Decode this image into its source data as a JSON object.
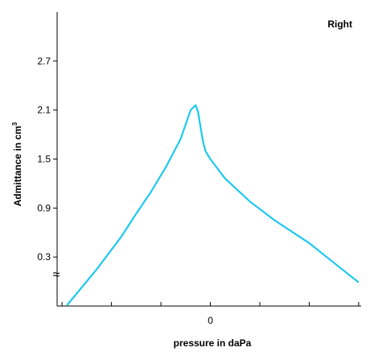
{
  "chart_data": {
    "type": "line",
    "panel_label": "Right",
    "xlabel": "pressure in daPa",
    "ylabel": "Admittance in cm",
    "ylabel_superscript": "3",
    "x_ticks": [
      -3,
      -2,
      -1,
      0,
      1,
      2,
      3
    ],
    "x_tick_labels": [
      "0"
    ],
    "x_labeled_value": 0,
    "y_ticks": [
      0.3,
      0.9,
      1.5,
      2.1,
      2.7
    ],
    "y_tick_labels": [
      "0.3",
      "0.9",
      "1.5",
      "2.1",
      "2.7"
    ],
    "axis_break_symbol": "≈",
    "ylim": [
      -0.3,
      3.3
    ],
    "xlim": [
      -3.1,
      3.05
    ],
    "line_color": "#1ec8f0",
    "series": [
      {
        "x": [
          -2.9,
          -2.3,
          -1.8,
          -1.5,
          -1.2,
          -0.9,
          -0.6,
          -0.4,
          -0.3,
          -0.25,
          -0.2,
          -0.15,
          -0.1,
          0,
          0.3,
          0.8,
          1.3,
          2.0,
          2.5,
          3.0
        ],
        "y": [
          -0.29,
          0.15,
          0.55,
          0.83,
          1.1,
          1.4,
          1.75,
          2.1,
          2.16,
          2.08,
          1.9,
          1.72,
          1.6,
          1.5,
          1.26,
          0.98,
          0.75,
          0.47,
          0.23,
          -0.01
        ]
      }
    ]
  }
}
